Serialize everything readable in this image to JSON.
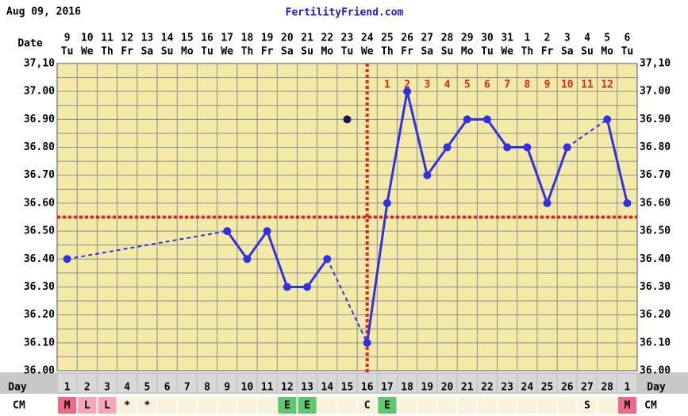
{
  "chart_data": {
    "type": "line",
    "printed_date": "Aug 09, 2016",
    "title": "FertilityFriend.com",
    "labels": {
      "date": "Date",
      "day": "Day",
      "cm": "CM"
    },
    "categories": [
      "9",
      "10",
      "11",
      "12",
      "13",
      "14",
      "15",
      "16",
      "17",
      "18",
      "19",
      "20",
      "21",
      "22",
      "23",
      "24",
      "25",
      "26",
      "27",
      "28",
      "29",
      "30",
      "31",
      "1",
      "2",
      "3",
      "4",
      "5",
      "6"
    ],
    "weekdays": [
      "Tu",
      "We",
      "Th",
      "Fr",
      "Sa",
      "Su",
      "Mo",
      "Tu",
      "We",
      "Th",
      "Fr",
      "Sa",
      "Su",
      "Mo",
      "Tu",
      "We",
      "Th",
      "Fr",
      "Sa",
      "Su",
      "Mo",
      "Tu",
      "We",
      "Th",
      "Fr",
      "Sa",
      "Su",
      "Mo",
      "Tu"
    ],
    "cycle_days": [
      "1",
      "2",
      "3",
      "4",
      "5",
      "6",
      "7",
      "8",
      "9",
      "10",
      "11",
      "12",
      "13",
      "14",
      "15",
      "16",
      "17",
      "18",
      "19",
      "20",
      "21",
      "22",
      "23",
      "24",
      "25",
      "26",
      "27",
      "28",
      "1"
    ],
    "cm": [
      "M",
      "L",
      "L",
      "*",
      "*",
      null,
      null,
      null,
      null,
      null,
      null,
      "E",
      "E",
      null,
      null,
      "C",
      "E",
      null,
      null,
      null,
      null,
      null,
      null,
      null,
      null,
      null,
      "S",
      null,
      "M"
    ],
    "cm_colors": {
      "M": "#ee6a84",
      "L": "#f5a8ba",
      "E": "#5fc86a"
    },
    "dpo": [
      null,
      null,
      null,
      null,
      null,
      null,
      null,
      null,
      null,
      null,
      null,
      null,
      null,
      null,
      null,
      null,
      "1",
      "2",
      "3",
      "4",
      "5",
      "6",
      "7",
      "8",
      "9",
      "10",
      "11",
      "12",
      null
    ],
    "series": [
      {
        "color": "#3030e8",
        "values": [
          36.4,
          null,
          null,
          null,
          null,
          null,
          null,
          null,
          36.5,
          36.4,
          36.5,
          36.3,
          36.3,
          36.4,
          null,
          36.1,
          36.6,
          37.0,
          36.7,
          36.8,
          36.9,
          36.9,
          36.8,
          36.8,
          36.6,
          36.8,
          null,
          36.9,
          36.6
        ]
      },
      {
        "color": "#16165e",
        "values": [
          null,
          null,
          null,
          null,
          null,
          null,
          null,
          null,
          null,
          null,
          null,
          null,
          null,
          null,
          36.9,
          null,
          null,
          null,
          null,
          null,
          null,
          null,
          null,
          null,
          null,
          null,
          null,
          null,
          null
        ]
      }
    ],
    "coverline": 36.55,
    "ovulation_category": 15,
    "marker_color": "#e62222",
    "ylim": [
      36.0,
      37.1
    ],
    "yticks": [
      {
        "value": 36.0,
        "label": "36.00"
      },
      {
        "value": 36.1,
        "label": "36.10"
      },
      {
        "value": 36.2,
        "label": "36.20"
      },
      {
        "value": 36.3,
        "label": "36.30"
      },
      {
        "value": 36.4,
        "label": "36.40"
      },
      {
        "value": 36.5,
        "label": "36.50"
      },
      {
        "value": 36.6,
        "label": "36.60"
      },
      {
        "value": 36.7,
        "label": "36.70"
      },
      {
        "value": 36.8,
        "label": "36.80"
      },
      {
        "value": 36.9,
        "label": "36.90"
      },
      {
        "value": 37.0,
        "label": "37.00"
      },
      {
        "value": 37.1,
        "label": "37,10"
      }
    ],
    "minor_yticks": [
      36.05,
      36.15,
      36.25,
      36.35,
      36.45,
      36.55,
      36.65,
      36.75,
      36.85,
      36.95,
      37.05
    ],
    "grid": true
  }
}
